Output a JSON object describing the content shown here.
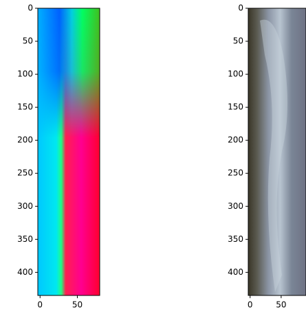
{
  "chart_data": [
    {
      "type": "image",
      "xlim": [
        -3,
        80
      ],
      "ylim": [
        435,
        0
      ],
      "xticks": [
        0,
        50
      ],
      "yticks": [
        0,
        50,
        100,
        150,
        200,
        250,
        300,
        350,
        400
      ]
    },
    {
      "type": "image",
      "xlim": [
        -3,
        90
      ],
      "ylim": [
        435,
        0
      ],
      "xticks": [
        0,
        50
      ],
      "yticks": [
        0,
        50,
        100,
        150,
        200,
        250,
        300,
        350,
        400
      ]
    }
  ]
}
